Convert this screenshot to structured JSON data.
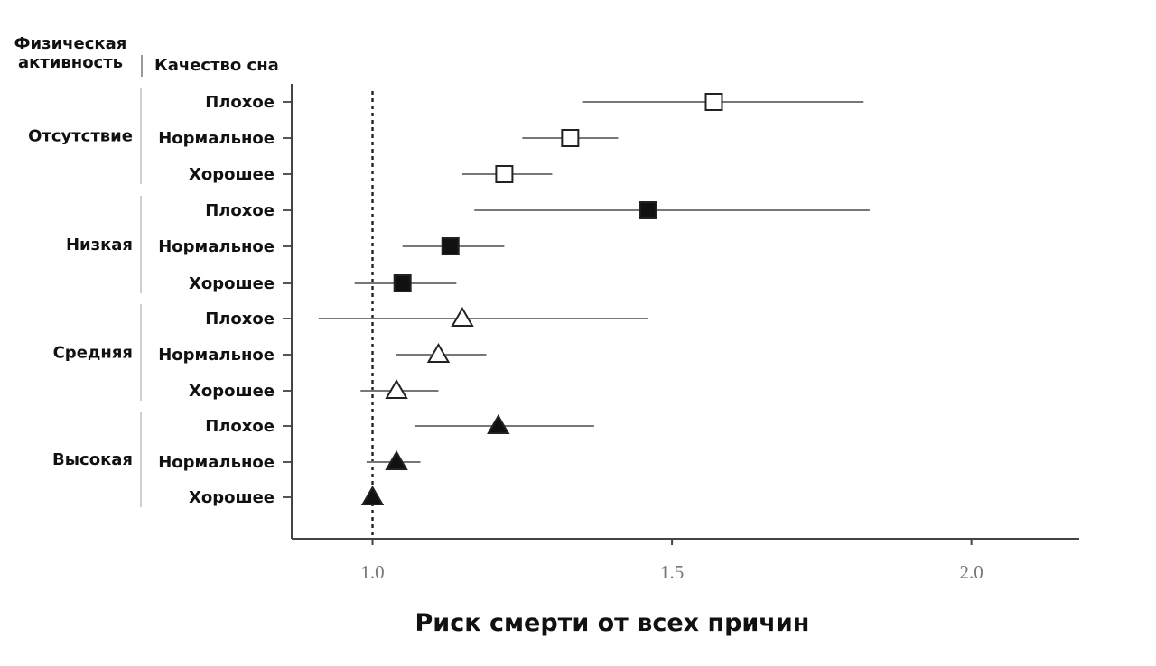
{
  "chart_data": {
    "type": "forest",
    "header": {
      "group_title": "Физическая\nактивность",
      "row_title": "Качество сна"
    },
    "xlabel": "Риск смерти от всех причин",
    "xlim": [
      0.865,
      2.18
    ],
    "xticks": [
      "1.0",
      "1.5",
      "2.0"
    ],
    "reference_line": 1.0,
    "groups": [
      {
        "name": "Отсутствие",
        "marker": "square-open",
        "rows": [
          {
            "label": "Плохое",
            "estimate": 1.57,
            "lower": 1.35,
            "upper": 1.82
          },
          {
            "label": "Нормальное",
            "estimate": 1.33,
            "lower": 1.25,
            "upper": 1.41
          },
          {
            "label": "Хорошее",
            "estimate": 1.22,
            "lower": 1.15,
            "upper": 1.3
          }
        ]
      },
      {
        "name": "Низкая",
        "marker": "square-filled",
        "rows": [
          {
            "label": "Плохое",
            "estimate": 1.46,
            "lower": 1.17,
            "upper": 1.83
          },
          {
            "label": "Нормальное",
            "estimate": 1.13,
            "lower": 1.05,
            "upper": 1.22
          },
          {
            "label": "Хорошее",
            "estimate": 1.05,
            "lower": 0.97,
            "upper": 1.14
          }
        ]
      },
      {
        "name": "Средняя",
        "marker": "triangle-open",
        "rows": [
          {
            "label": "Плохое",
            "estimate": 1.15,
            "lower": 0.91,
            "upper": 1.46
          },
          {
            "label": "Нормальное",
            "estimate": 1.11,
            "lower": 1.04,
            "upper": 1.19
          },
          {
            "label": "Хорошее",
            "estimate": 1.04,
            "lower": 0.98,
            "upper": 1.11
          }
        ]
      },
      {
        "name": "Высокая",
        "marker": "triangle-filled",
        "rows": [
          {
            "label": "Плохое",
            "estimate": 1.21,
            "lower": 1.07,
            "upper": 1.37
          },
          {
            "label": "Нормальное",
            "estimate": 1.04,
            "lower": 0.99,
            "upper": 1.08
          },
          {
            "label": "Хорошее",
            "estimate": 1.0,
            "lower": 1.0,
            "upper": 1.0
          }
        ]
      }
    ]
  }
}
